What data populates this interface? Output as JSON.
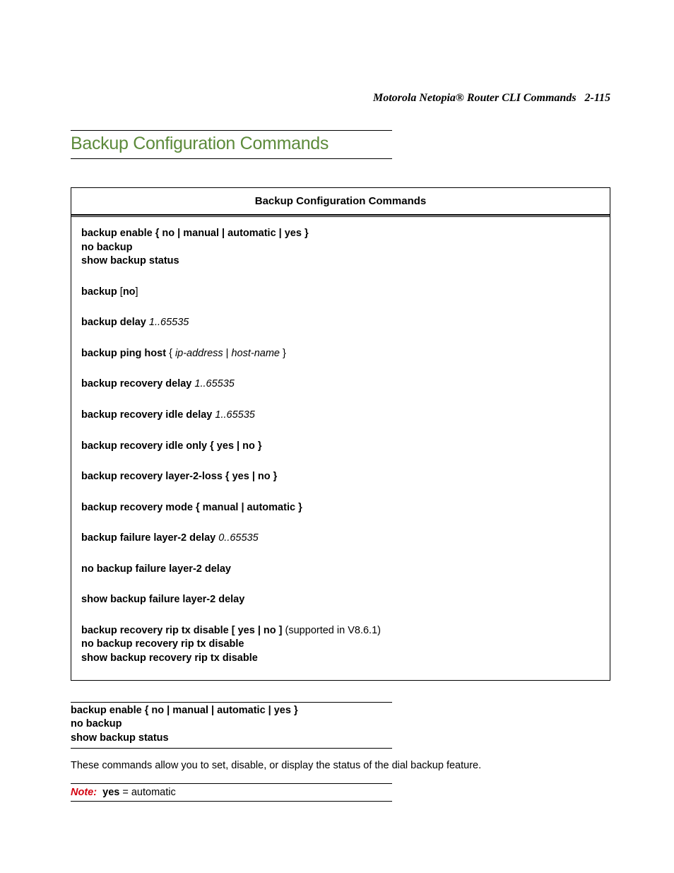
{
  "header": {
    "title": "Motorola Netopia® Router CLI Commands",
    "page": "2-115"
  },
  "section": {
    "title": "Backup Configuration Commands"
  },
  "box": {
    "header": "Backup Configuration Commands",
    "group1": {
      "l1": {
        "cmd": "backup enable",
        "opts": "{ no | manual | automatic | yes }"
      },
      "l2": {
        "cmd": "no backup"
      },
      "l3": {
        "cmd": "show backup status"
      }
    },
    "r1": {
      "pre": "backup ",
      "bracket_open": "[",
      "opt": "no",
      "bracket_close": "]"
    },
    "r2": {
      "cmd": "backup delay ",
      "arg": "1..65535"
    },
    "r3": {
      "cmd": "backup ping host ",
      "brace_open": "{ ",
      "arg1": "ip-address",
      "sep": " | ",
      "arg2": "host-name",
      "brace_close": " }"
    },
    "r4": {
      "cmd": "backup recovery delay ",
      "arg": "1..65535"
    },
    "r5": {
      "cmd": "backup recovery idle delay  ",
      "arg": "1..65535"
    },
    "r6": {
      "cmd": "backup recovery idle only ",
      "opts": "{ yes | no }"
    },
    "r7": {
      "cmd": "backup recovery layer-2-loss ",
      "opts": "{ yes | no }"
    },
    "r8": {
      "cmd": "backup recovery mode ",
      "opts": "{ manual | automatic }"
    },
    "r9": {
      "cmd": "backup failure layer-2 delay ",
      "arg": "0..65535"
    },
    "r10": {
      "cmd": "no backup failure layer-2 delay"
    },
    "r11": {
      "cmd": "show backup failure layer-2 delay"
    },
    "group_last": {
      "l1": {
        "cmd": "backup recovery rip tx disable ",
        "opts": "[ yes | no ]",
        "note": "  (supported in V8.6.1)"
      },
      "l2": {
        "cmd": "no backup recovery rip tx disable"
      },
      "l3": {
        "cmd": "show backup recovery rip tx disable"
      }
    }
  },
  "sub": {
    "l1": {
      "cmd": "backup enable ",
      "opts": "{ no | manual | automatic | yes }"
    },
    "l2": {
      "cmd": "no backup"
    },
    "l3": {
      "cmd": "show backup status"
    }
  },
  "para1": "These commands allow you to set, disable, or display the status of the dial backup feature.",
  "note": {
    "label": "Note:",
    "bold": "yes",
    "rest": " = automatic"
  },
  "style": {
    "accent_color": "#5c8a3a",
    "note_color": "#d4000f",
    "text_color": "#000000",
    "background": "#ffffff",
    "title_fontsize": 25,
    "body_fontsize": 14.5,
    "header_fontsize": 16,
    "rule_width": 455
  }
}
